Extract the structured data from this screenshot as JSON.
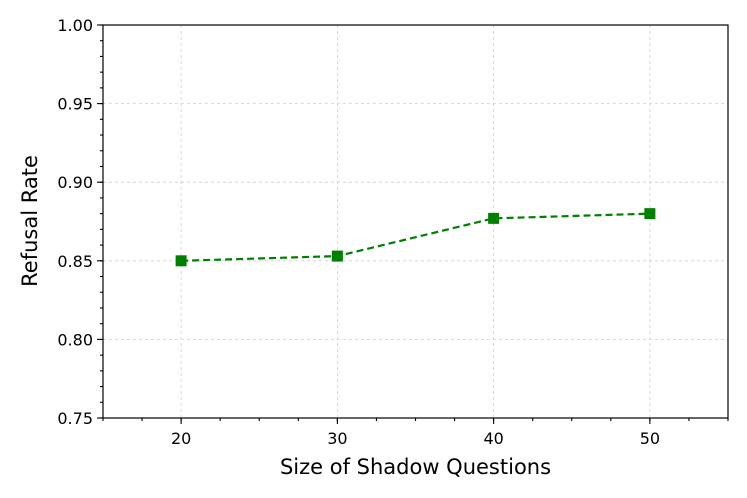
{
  "chart_data": {
    "type": "line",
    "title": "",
    "xlabel": "Size of Shadow Questions",
    "ylabel": "Refusal Rate",
    "xlim": [
      15,
      55
    ],
    "ylim": [
      0.75,
      1.0
    ],
    "x_ticks": [
      "20",
      "30",
      "40",
      "50"
    ],
    "y_ticks": [
      "0.75",
      "0.80",
      "0.85",
      "0.90",
      "0.95",
      "1.00"
    ],
    "grid": true,
    "series": [
      {
        "x": [
          20,
          30,
          40,
          50
        ],
        "values": [
          0.85,
          0.853,
          0.877,
          0.88
        ],
        "color": "#008000",
        "line_style": "dashed",
        "marker": "square"
      }
    ]
  }
}
